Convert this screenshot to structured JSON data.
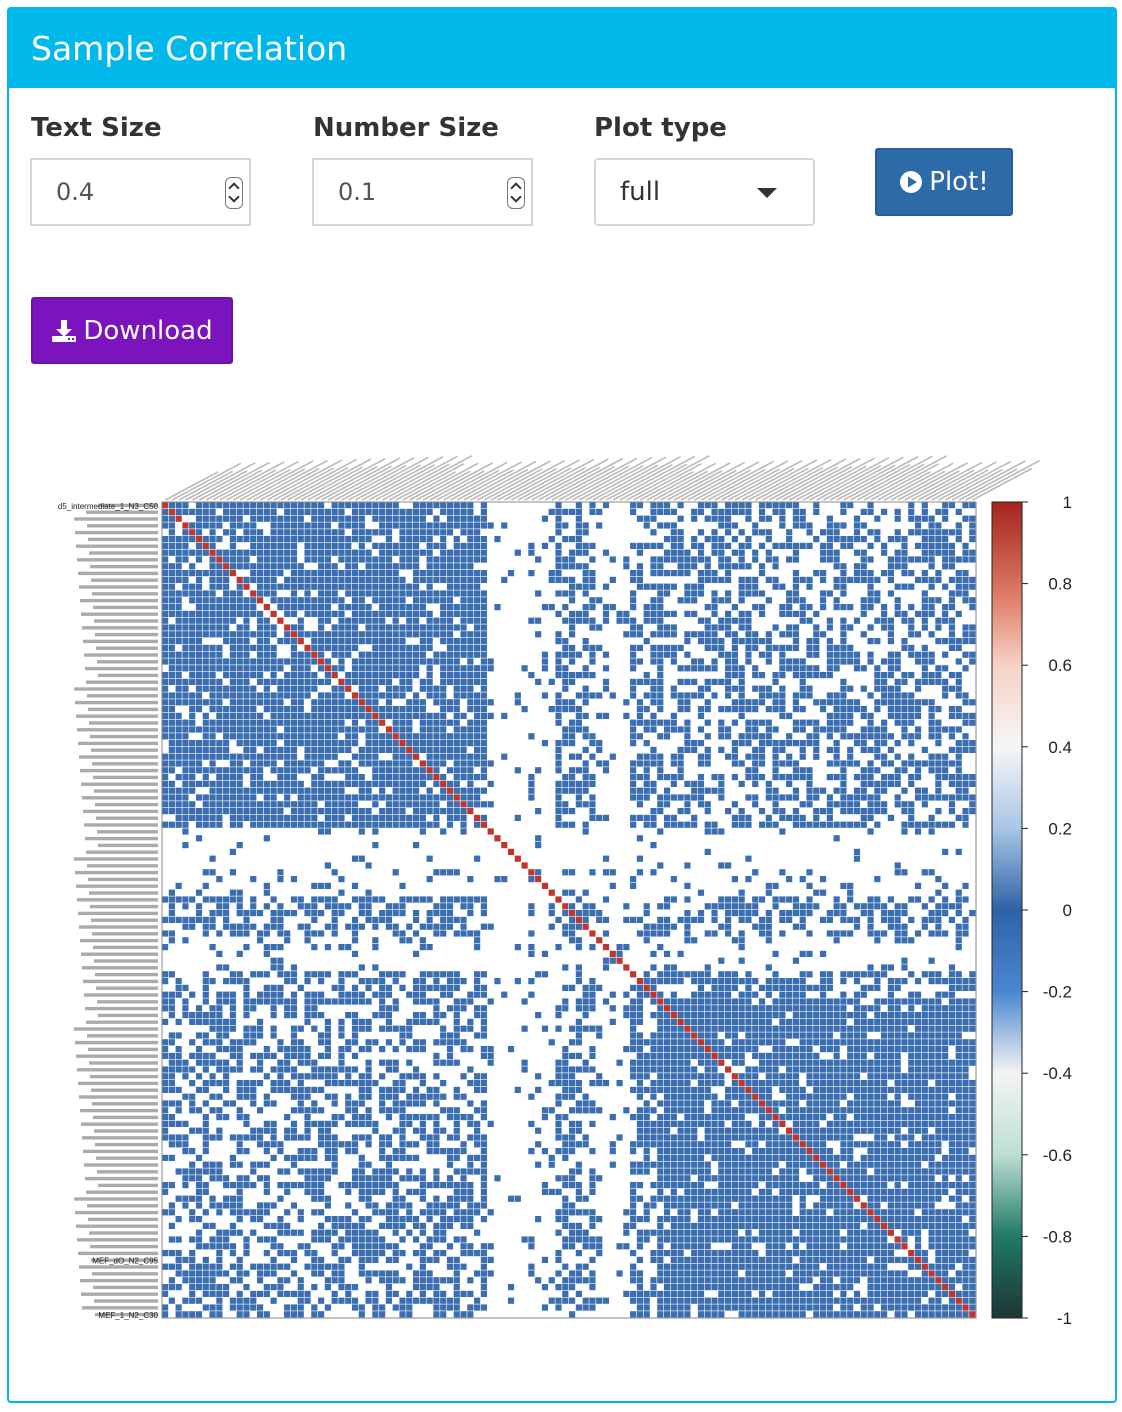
{
  "panel": {
    "title": "Sample Correlation"
  },
  "controls": {
    "text_size": {
      "label": "Text Size",
      "value": "0.4"
    },
    "number_size": {
      "label": "Number Size",
      "value": "0.1"
    },
    "plot_type": {
      "label": "Plot type",
      "value": "full"
    },
    "plot_button": {
      "label": "Plot!",
      "icon": "play-circle-icon"
    },
    "download_button": {
      "label": "Download",
      "icon": "download-icon"
    }
  },
  "colors": {
    "header": "#00b8ea",
    "plot_button": "#2c6aa8",
    "download_button": "#7c14be",
    "cell_negative": "#3a6eb0",
    "diagonal": "#c0362c"
  },
  "chart_data": {
    "type": "heatmap",
    "n_samples": 120,
    "colorbar": {
      "ticks": [
        "1",
        "0.8",
        "0.6",
        "0.4",
        "0.2",
        "0",
        "-0.2",
        "-0.4",
        "-0.6",
        "-0.8",
        "-1"
      ],
      "range": [
        -1,
        1
      ]
    },
    "visible_row_labels": [
      "d5_intermediate_1_N3_C50",
      "MEF_dO_N2_C95",
      "MEF_1_N2_C30"
    ]
  }
}
